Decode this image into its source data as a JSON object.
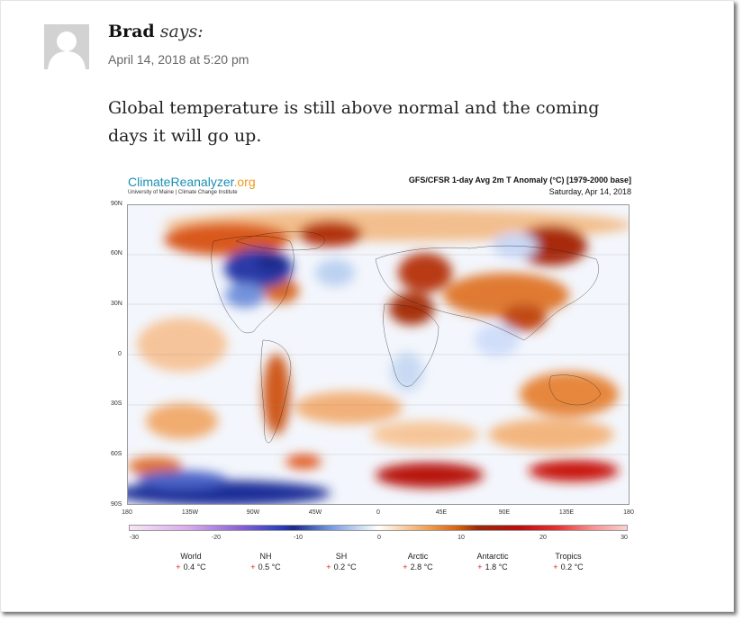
{
  "comment": {
    "author": "Brad",
    "says": "says:",
    "date": "April 14, 2018 at 5:20 pm",
    "text": "Global temperature is still above normal and the coming days it will go up."
  },
  "figure": {
    "logo_main": "ClimateReanalyzer",
    "logo_org": ".org",
    "logo_sub": "University of Maine | Climate Change Institute",
    "title": "GFS/CFSR 1-day Avg 2m T Anomaly (°C) [1979-2000 base]",
    "date": "Saturday, Apr 14, 2018",
    "lat_labels": [
      "90N",
      "60N",
      "30N",
      "0",
      "30S",
      "60S",
      "90S"
    ],
    "lon_labels": [
      "180",
      "135W",
      "90W",
      "45W",
      "0",
      "45E",
      "90E",
      "135E",
      "180"
    ],
    "colorbar_ticks": [
      "-30",
      "-20",
      "-10",
      "0",
      "10",
      "20",
      "30"
    ],
    "stats": [
      {
        "label": "World",
        "value": "0.4 °C"
      },
      {
        "label": "NH",
        "value": "0.5 °C"
      },
      {
        "label": "SH",
        "value": "0.2 °C"
      },
      {
        "label": "Arctic",
        "value": "2.8 °C"
      },
      {
        "label": "Antarctic",
        "value": "1.8 °C"
      },
      {
        "label": "Tropics",
        "value": "0.2 °C"
      }
    ],
    "plus_sign": "+"
  }
}
